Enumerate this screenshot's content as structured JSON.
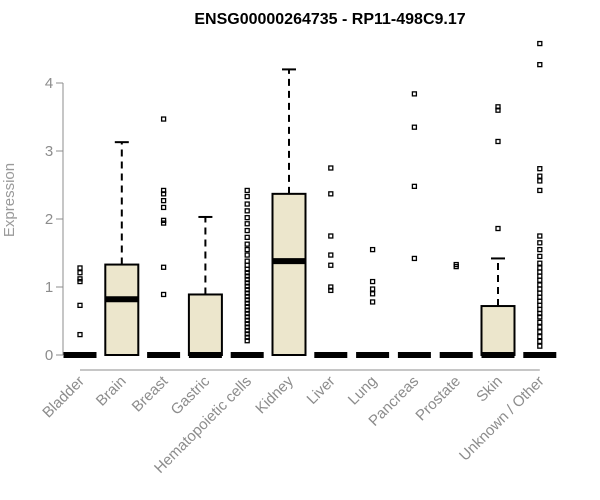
{
  "chart_data": {
    "type": "box",
    "title": "ENSG00000264735 - RP11-498C9.17",
    "ylabel": "Expression",
    "xlabel": "",
    "ylim": [
      0,
      4.6
    ],
    "yticks": [
      0,
      1,
      2,
      3,
      4
    ],
    "grid": false,
    "box_fill": "#ece6cc",
    "categories": [
      "Bladder",
      "Brain",
      "Breast",
      "Gastric",
      "Hematopoietic cells",
      "Kidney",
      "Liver",
      "Lung",
      "Pancreas",
      "Prostate",
      "Skin",
      "Unknown / Other"
    ],
    "boxes": [
      {
        "q1": 0,
        "median": 0,
        "q3": 0,
        "whisker_low": 0,
        "whisker_high": 0,
        "outliers": [
          1.28,
          1.21,
          1.12,
          1.08,
          0.73,
          0.3
        ]
      },
      {
        "q1": 0,
        "median": 0.82,
        "q3": 1.33,
        "whisker_low": 0,
        "whisker_high": 3.13,
        "outliers": []
      },
      {
        "q1": 0,
        "median": 0,
        "q3": 0,
        "whisker_low": 0,
        "whisker_high": 0,
        "outliers": [
          3.47,
          2.42,
          2.37,
          2.27,
          2.17,
          1.98,
          1.94,
          1.29,
          0.89
        ]
      },
      {
        "q1": 0,
        "median": 0,
        "q3": 0.89,
        "whisker_low": 0,
        "whisker_high": 2.03,
        "outliers": []
      },
      {
        "q1": 0,
        "median": 0,
        "q3": 0,
        "whisker_low": 0,
        "whisker_high": 0,
        "outliers": [
          2.42,
          2.33,
          2.22,
          2.12,
          2.02,
          1.93,
          1.83,
          1.73,
          1.63,
          1.55,
          1.47,
          1.38,
          1.32,
          1.26,
          1.21,
          1.16,
          1.11,
          1.06,
          1.01,
          0.96,
          0.91,
          0.86,
          0.81,
          0.76,
          0.71,
          0.66,
          0.61,
          0.56,
          0.51,
          0.46,
          0.41,
          0.36,
          0.31,
          0.26,
          0.21
        ]
      },
      {
        "q1": 0,
        "median": 1.38,
        "q3": 2.37,
        "whisker_low": 0,
        "whisker_high": 4.2,
        "outliers": []
      },
      {
        "q1": 0,
        "median": 0,
        "q3": 0,
        "whisker_low": 0,
        "whisker_high": 0,
        "outliers": [
          2.75,
          2.37,
          1.75,
          1.47,
          1.32,
          1.0,
          0.95
        ]
      },
      {
        "q1": 0,
        "median": 0,
        "q3": 0,
        "whisker_low": 0,
        "whisker_high": 0,
        "outliers": [
          1.55,
          1.08,
          0.97,
          0.9,
          0.78
        ]
      },
      {
        "q1": 0,
        "median": 0,
        "q3": 0,
        "whisker_low": 0,
        "whisker_high": 0,
        "outliers": [
          3.84,
          3.35,
          2.48,
          1.42
        ]
      },
      {
        "q1": 0,
        "median": 0,
        "q3": 0,
        "whisker_low": 0,
        "whisker_high": 0,
        "outliers": [
          1.33,
          1.3
        ]
      },
      {
        "q1": 0,
        "median": 0,
        "q3": 0.72,
        "whisker_low": 0,
        "whisker_high": 1.42,
        "outliers": [
          3.65,
          3.6,
          3.14,
          1.86
        ]
      },
      {
        "q1": 0,
        "median": 0,
        "q3": 0,
        "whisker_low": 0,
        "whisker_high": 0,
        "outliers": [
          4.58,
          4.27,
          2.74,
          2.63,
          2.56,
          2.42,
          1.75,
          1.65,
          1.55,
          1.45,
          1.35,
          1.28,
          1.22,
          1.16,
          1.1,
          1.03,
          0.97,
          0.91,
          0.85,
          0.79,
          0.73,
          0.67,
          0.61,
          0.56,
          0.48,
          0.41,
          0.34,
          0.27,
          0.2,
          0.13
        ]
      }
    ]
  }
}
